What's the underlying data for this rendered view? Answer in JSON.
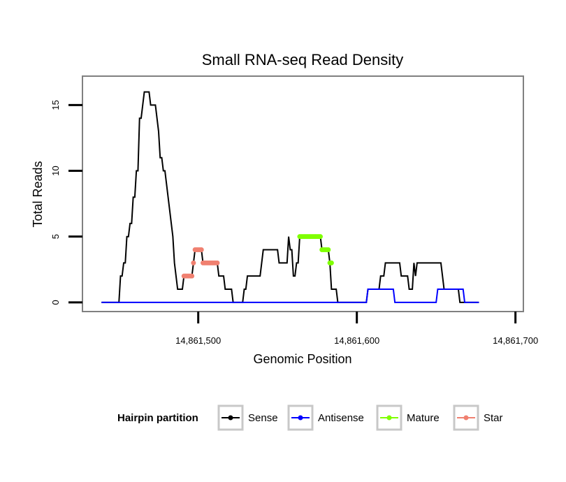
{
  "chart_data": {
    "type": "line",
    "title": "Small RNA-seq Read Density",
    "xlabel": "Genomic Position",
    "ylabel": "Total Reads",
    "xlim": [
      14861427,
      14861705
    ],
    "ylim": [
      -0.7,
      17.2
    ],
    "x_ticks": [
      {
        "value": 14861500,
        "label": "14,861,500"
      },
      {
        "value": 14861600,
        "label": "14,861,600"
      },
      {
        "value": 14861700,
        "label": "14,861,700"
      }
    ],
    "y_ticks": [
      {
        "value": 0,
        "label": "0"
      },
      {
        "value": 5,
        "label": "5"
      },
      {
        "value": 10,
        "label": "10"
      },
      {
        "value": 15,
        "label": "15"
      }
    ],
    "legend": {
      "title": "Hairpin partition",
      "position": "bottom",
      "entries": [
        {
          "label": "Sense",
          "color": "#000000"
        },
        {
          "label": "Antisense",
          "color": "#0000ff"
        },
        {
          "label": "Mature",
          "color": "#7fff00"
        },
        {
          "label": "Star",
          "color": "#f08070"
        }
      ]
    },
    "series": [
      {
        "name": "Sense",
        "color": "#000000",
        "style": "line",
        "points": [
          [
            14861439,
            0
          ],
          [
            14861450,
            0
          ],
          [
            14861451,
            2
          ],
          [
            14861452,
            2
          ],
          [
            14861453,
            3
          ],
          [
            14861454,
            3
          ],
          [
            14861455,
            5
          ],
          [
            14861456,
            5
          ],
          [
            14861457,
            6
          ],
          [
            14861458,
            6
          ],
          [
            14861459,
            8
          ],
          [
            14861460,
            8
          ],
          [
            14861461,
            10
          ],
          [
            14861462,
            10
          ],
          [
            14861463,
            14
          ],
          [
            14861464,
            14
          ],
          [
            14861465,
            15
          ],
          [
            14861466,
            16
          ],
          [
            14861467,
            16
          ],
          [
            14861468,
            16
          ],
          [
            14861469,
            16
          ],
          [
            14861470,
            15
          ],
          [
            14861471,
            15
          ],
          [
            14861472,
            15
          ],
          [
            14861473,
            15
          ],
          [
            14861474,
            14
          ],
          [
            14861475,
            13
          ],
          [
            14861476,
            11
          ],
          [
            14861477,
            11
          ],
          [
            14861478,
            10
          ],
          [
            14861479,
            10
          ],
          [
            14861480,
            9
          ],
          [
            14861481,
            8
          ],
          [
            14861482,
            7
          ],
          [
            14861483,
            6
          ],
          [
            14861484,
            5
          ],
          [
            14861485,
            3
          ],
          [
            14861486,
            2
          ],
          [
            14861487,
            1
          ],
          [
            14861488,
            1
          ],
          [
            14861489,
            1
          ],
          [
            14861490,
            1
          ],
          [
            14861491,
            2
          ],
          [
            14861492,
            2
          ],
          [
            14861493,
            2
          ],
          [
            14861494,
            2
          ],
          [
            14861495,
            2
          ],
          [
            14861496,
            2
          ],
          [
            14861497,
            3
          ],
          [
            14861498,
            4
          ],
          [
            14861499,
            4
          ],
          [
            14861500,
            4
          ],
          [
            14861501,
            4
          ],
          [
            14861502,
            4
          ],
          [
            14861503,
            3
          ],
          [
            14861504,
            3
          ],
          [
            14861505,
            3
          ],
          [
            14861506,
            3
          ],
          [
            14861507,
            3
          ],
          [
            14861508,
            3
          ],
          [
            14861509,
            3
          ],
          [
            14861510,
            3
          ],
          [
            14861511,
            3
          ],
          [
            14861512,
            3
          ],
          [
            14861513,
            2
          ],
          [
            14861514,
            2
          ],
          [
            14861515,
            2
          ],
          [
            14861516,
            2
          ],
          [
            14861517,
            1
          ],
          [
            14861518,
            1
          ],
          [
            14861519,
            1
          ],
          [
            14861520,
            1
          ],
          [
            14861521,
            1
          ],
          [
            14861522,
            0
          ],
          [
            14861528,
            0
          ],
          [
            14861529,
            1
          ],
          [
            14861530,
            1
          ],
          [
            14861531,
            2
          ],
          [
            14861539,
            2
          ],
          [
            14861540,
            3
          ],
          [
            14861541,
            4
          ],
          [
            14861550,
            4
          ],
          [
            14861551,
            3
          ],
          [
            14861556,
            3
          ],
          [
            14861557,
            5
          ],
          [
            14861558,
            4
          ],
          [
            14861559,
            4
          ],
          [
            14861560,
            2
          ],
          [
            14861561,
            2
          ],
          [
            14861562,
            3
          ],
          [
            14861563,
            3
          ],
          [
            14861564,
            5
          ],
          [
            14861577,
            5
          ],
          [
            14861578,
            4
          ],
          [
            14861582,
            4
          ],
          [
            14861583,
            3
          ],
          [
            14861584,
            1
          ],
          [
            14861587,
            1
          ],
          [
            14861588,
            0
          ],
          [
            14861606,
            0
          ],
          [
            14861607,
            1
          ],
          [
            14861614,
            1
          ],
          [
            14861615,
            2
          ],
          [
            14861617,
            2
          ],
          [
            14861618,
            3
          ],
          [
            14861627,
            3
          ],
          [
            14861628,
            2
          ],
          [
            14861632,
            2
          ],
          [
            14861633,
            1
          ],
          [
            14861635,
            1
          ],
          [
            14861636,
            3
          ],
          [
            14861637,
            2
          ],
          [
            14861638,
            3
          ],
          [
            14861653,
            3
          ],
          [
            14861654,
            2
          ],
          [
            14861655,
            1
          ],
          [
            14861664,
            1
          ],
          [
            14861665,
            0
          ],
          [
            14861677,
            0
          ]
        ]
      },
      {
        "name": "Antisense",
        "color": "#0000ff",
        "style": "line",
        "points": [
          [
            14861439,
            0
          ],
          [
            14861606,
            0
          ],
          [
            14861607,
            1
          ],
          [
            14861623,
            1
          ],
          [
            14861624,
            0
          ],
          [
            14861650,
            0
          ],
          [
            14861651,
            1
          ],
          [
            14861667,
            1
          ],
          [
            14861668,
            0
          ],
          [
            14861677,
            0
          ]
        ]
      },
      {
        "name": "Mature",
        "color": "#7fff00",
        "style": "segments",
        "segments": [
          {
            "x": [
              14861564,
              14861577
            ],
            "y": 5
          },
          {
            "x": [
              14861578,
              14861582
            ],
            "y": 4
          },
          {
            "x": [
              14861583,
              14861584
            ],
            "y": 3
          }
        ]
      },
      {
        "name": "Star",
        "color": "#f08070",
        "style": "segments",
        "segments": [
          {
            "x": [
              14861491,
              14861496
            ],
            "y": 2
          },
          {
            "x": [
              14861497,
              14861497
            ],
            "y": 3
          },
          {
            "x": [
              14861498,
              14861502
            ],
            "y": 4
          },
          {
            "x": [
              14861503,
              14861512
            ],
            "y": 3
          }
        ]
      }
    ]
  }
}
